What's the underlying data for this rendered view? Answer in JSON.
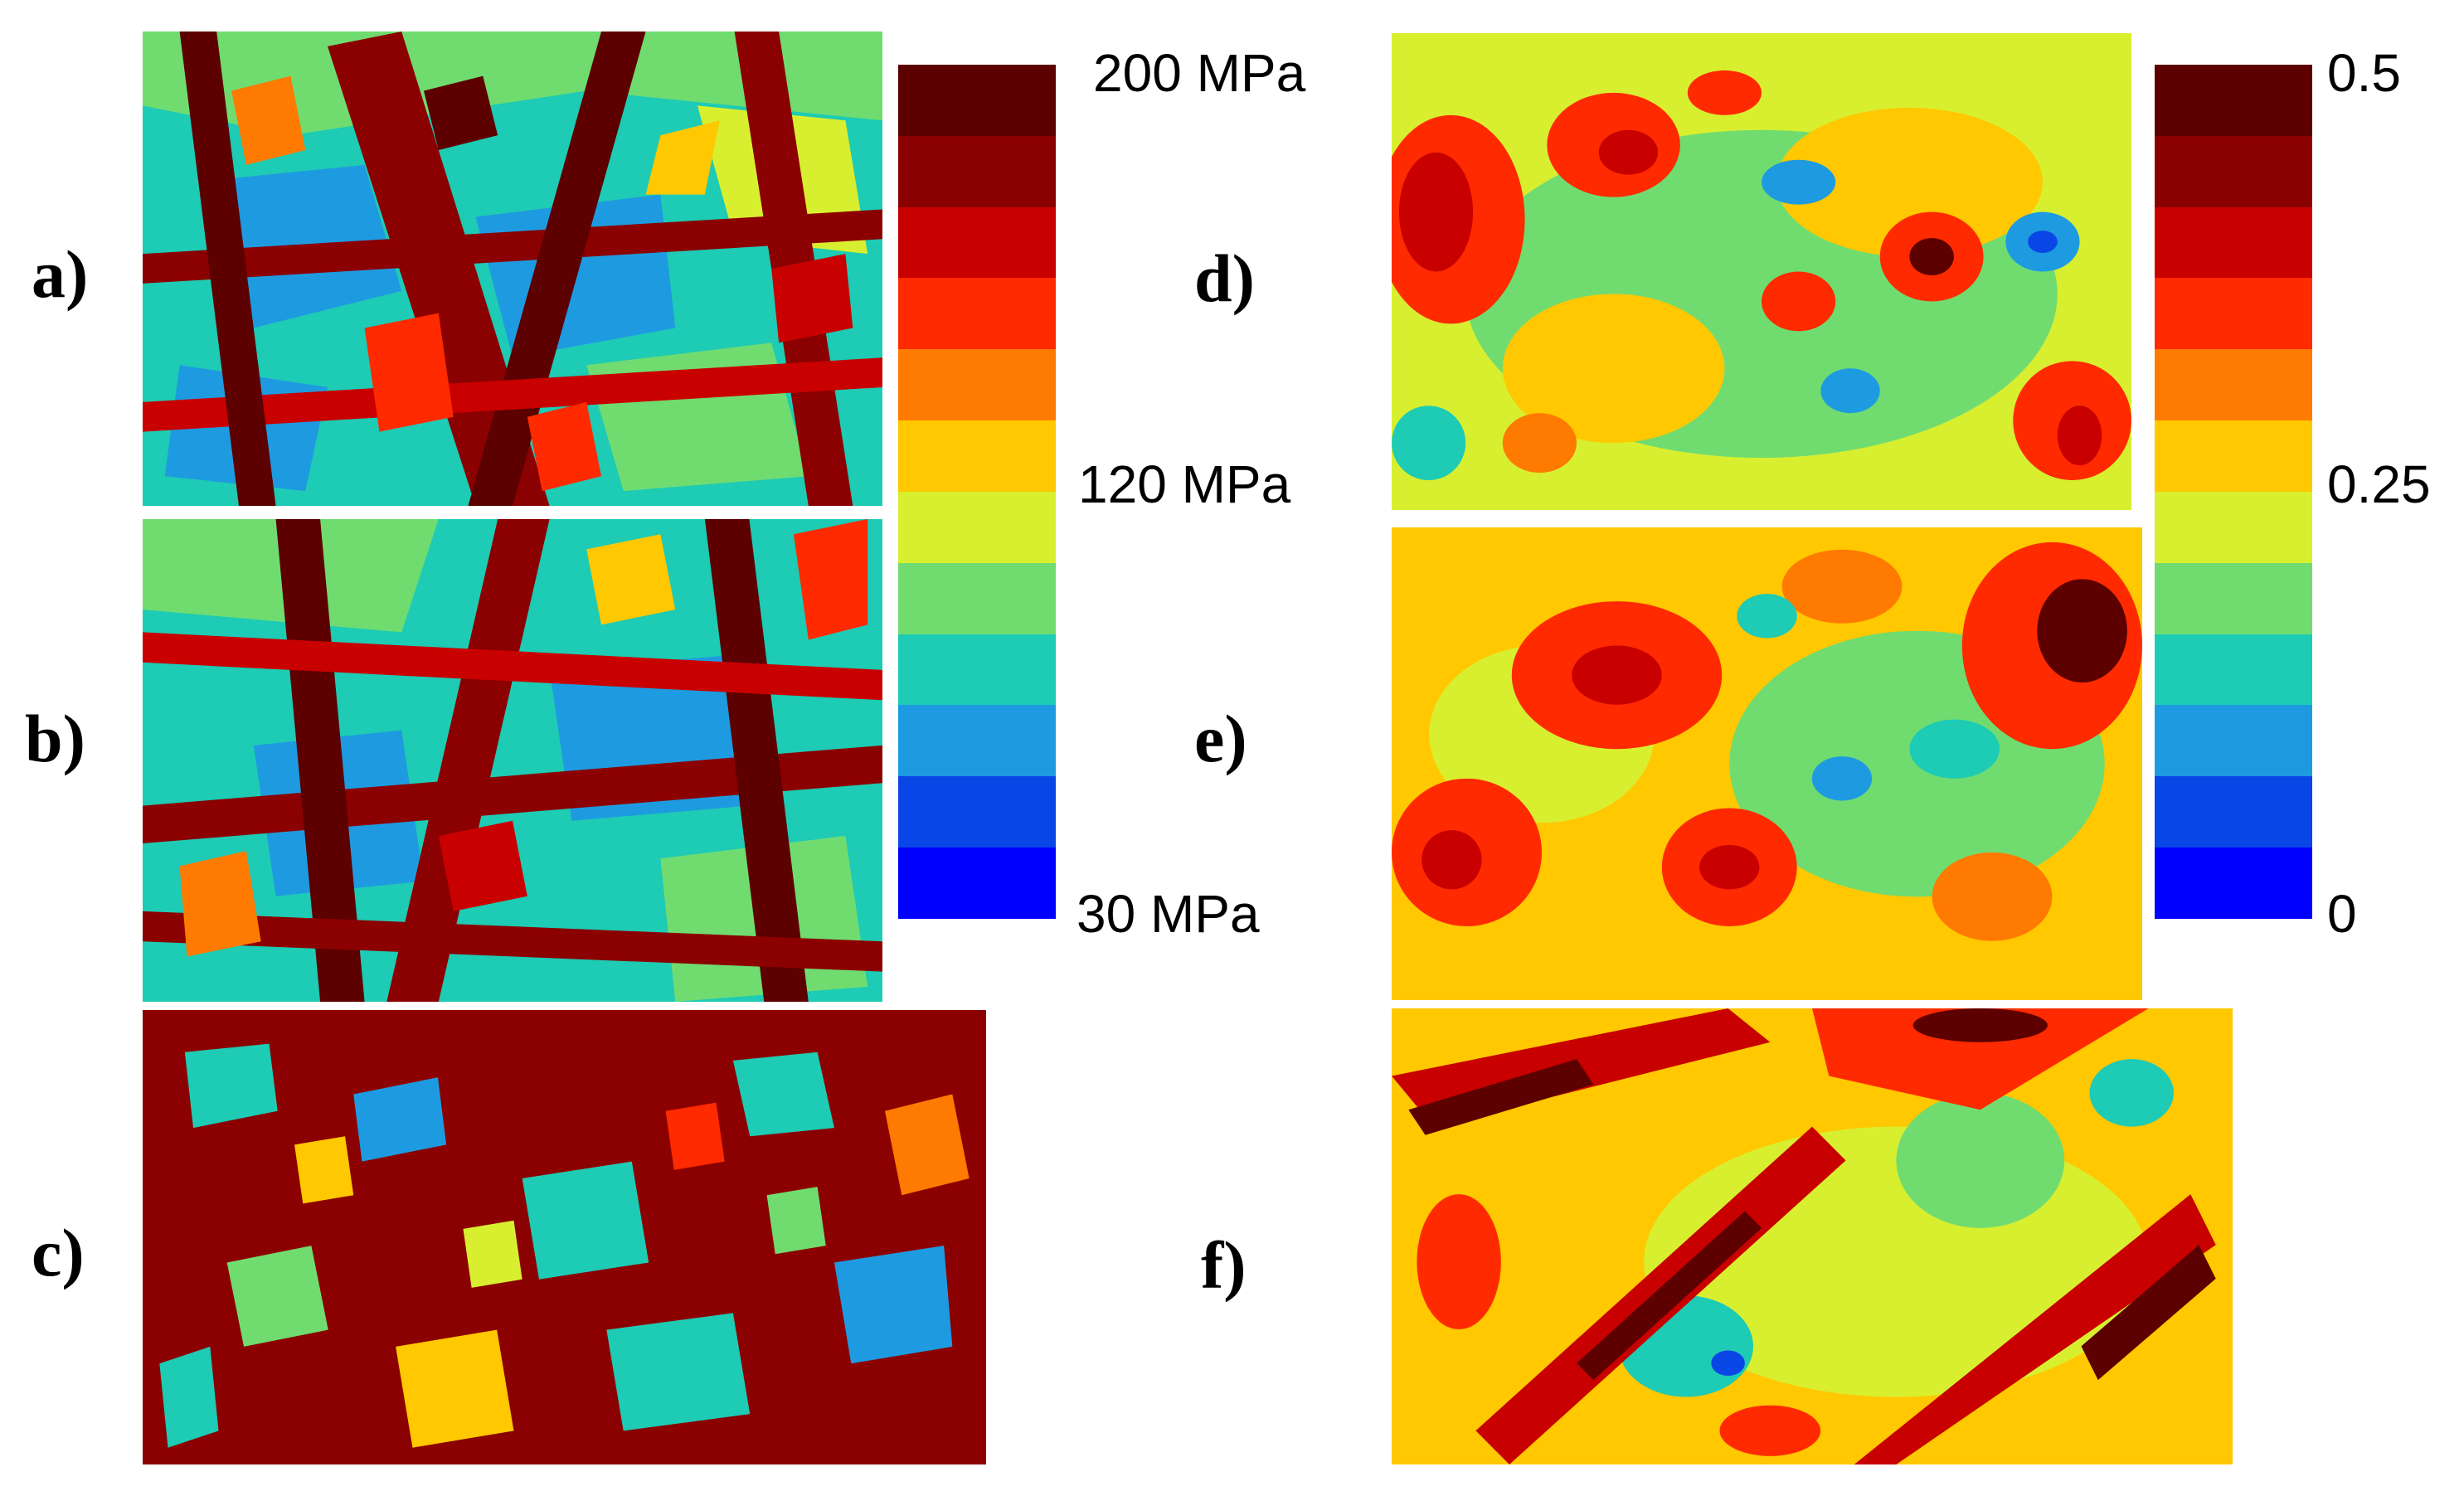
{
  "panels": {
    "a": {
      "label": "a)"
    },
    "b": {
      "label": "b)"
    },
    "c": {
      "label": "c)"
    },
    "d": {
      "label": "d)"
    },
    "e": {
      "label": "e)"
    },
    "f": {
      "label": "f)"
    }
  },
  "stress_colorbar": {
    "max_label": "200 MPa",
    "mid_label": "120 MPa",
    "min_label": "30 MPa"
  },
  "fraction_colorbar": {
    "max_label": "0.5",
    "mid_label": "0.25",
    "min_label": "0"
  },
  "palette": [
    "#5c0000",
    "#8b0000",
    "#c80000",
    "#ff2a00",
    "#ff7a00",
    "#ffc800",
    "#d8ef30",
    "#70dc70",
    "#1ecbb4",
    "#1e9be0",
    "#0a46e6",
    "#0000ff"
  ]
}
